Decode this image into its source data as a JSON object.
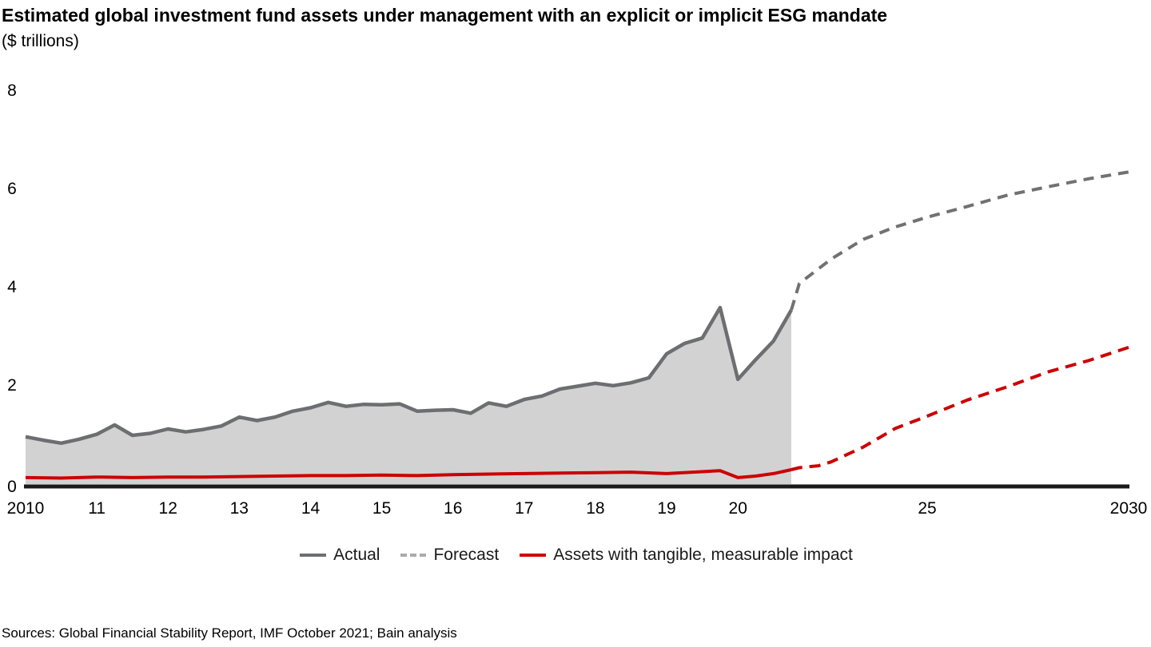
{
  "title": "Estimated global investment fund assets under management with an explicit or implicit ESG mandate",
  "subtitle": "($ trillions)",
  "source_note": "Sources: Global Financial Stability Report, IMF October 2021; Bain analysis",
  "legend": {
    "items": [
      {
        "label": "Actual",
        "swatch": "solid-gray"
      },
      {
        "label": "Forecast",
        "swatch": "dashed-gray"
      },
      {
        "label": "Assets with tangible, measurable impact",
        "swatch": "solid-red"
      }
    ]
  },
  "colors": {
    "actual_line": "#6d6e71",
    "forecast_line": "#717174",
    "impact_line": "#cc0000",
    "area_fill": "#d2d2d2",
    "axis_line": "#1a1a1a",
    "legend_forecast_swatch": "#ababab"
  },
  "chart_data": {
    "type": "area",
    "title": "Estimated global investment fund assets under management with an explicit or implicit ESG mandate",
    "ylabel": "$ trillions",
    "ylim": [
      0,
      8
    ],
    "grid": false,
    "legend_position": "bottom-center",
    "y_ticks": [
      0,
      2,
      4,
      6,
      8
    ],
    "x_ticks": [
      {
        "label": "2010",
        "year": 2010
      },
      {
        "label": "11",
        "year": 2011
      },
      {
        "label": "12",
        "year": 2012
      },
      {
        "label": "13",
        "year": 2013
      },
      {
        "label": "14",
        "year": 2014
      },
      {
        "label": "15",
        "year": 2015
      },
      {
        "label": "16",
        "year": 2016
      },
      {
        "label": "17",
        "year": 2017
      },
      {
        "label": "18",
        "year": 2018
      },
      {
        "label": "19",
        "year": 2019
      },
      {
        "label": "20",
        "year": 2020
      },
      {
        "label": "25",
        "year": 2025
      },
      {
        "label": "2030",
        "year": 2030
      }
    ],
    "series": [
      {
        "name": "Actual",
        "style": "solid",
        "filled": true,
        "points": [
          [
            2010.0,
            0.93
          ],
          [
            2010.25,
            0.86
          ],
          [
            2010.5,
            0.8
          ],
          [
            2010.75,
            0.88
          ],
          [
            2011.0,
            0.98
          ],
          [
            2011.25,
            1.17
          ],
          [
            2011.5,
            0.96
          ],
          [
            2011.75,
            1.0
          ],
          [
            2012.0,
            1.09
          ],
          [
            2012.25,
            1.03
          ],
          [
            2012.5,
            1.08
          ],
          [
            2012.75,
            1.15
          ],
          [
            2013.0,
            1.33
          ],
          [
            2013.25,
            1.26
          ],
          [
            2013.5,
            1.33
          ],
          [
            2013.75,
            1.45
          ],
          [
            2014.0,
            1.52
          ],
          [
            2014.25,
            1.63
          ],
          [
            2014.5,
            1.55
          ],
          [
            2014.75,
            1.59
          ],
          [
            2015.0,
            1.58
          ],
          [
            2015.25,
            1.6
          ],
          [
            2015.5,
            1.45
          ],
          [
            2015.75,
            1.47
          ],
          [
            2016.0,
            1.48
          ],
          [
            2016.25,
            1.41
          ],
          [
            2016.5,
            1.62
          ],
          [
            2016.75,
            1.55
          ],
          [
            2017.0,
            1.69
          ],
          [
            2017.25,
            1.76
          ],
          [
            2017.5,
            1.9
          ],
          [
            2017.75,
            1.96
          ],
          [
            2018.0,
            2.02
          ],
          [
            2018.25,
            1.97
          ],
          [
            2018.5,
            2.03
          ],
          [
            2018.75,
            2.13
          ],
          [
            2019.0,
            2.62
          ],
          [
            2019.25,
            2.83
          ],
          [
            2019.5,
            2.94
          ],
          [
            2019.75,
            3.56
          ],
          [
            2020.0,
            2.1
          ],
          [
            2020.25,
            2.5
          ],
          [
            2020.5,
            2.88
          ],
          [
            2020.75,
            3.51
          ]
        ]
      },
      {
        "name": "Forecast",
        "style": "dashed",
        "filled": false,
        "points": [
          [
            2020.75,
            3.51
          ],
          [
            2021,
            4.05
          ],
          [
            2022,
            4.55
          ],
          [
            2023,
            4.95
          ],
          [
            2024,
            5.2
          ],
          [
            2025,
            5.4
          ],
          [
            2026,
            5.62
          ],
          [
            2027,
            5.85
          ],
          [
            2028,
            6.02
          ],
          [
            2029,
            6.18
          ],
          [
            2030,
            6.32
          ]
        ]
      },
      {
        "name": "Assets with tangible, measurable impact (actual)",
        "style": "solid",
        "filled": false,
        "points": [
          [
            2010.0,
            0.1
          ],
          [
            2010.5,
            0.09
          ],
          [
            2011.0,
            0.11
          ],
          [
            2011.5,
            0.1
          ],
          [
            2012.0,
            0.11
          ],
          [
            2012.5,
            0.11
          ],
          [
            2013.0,
            0.12
          ],
          [
            2013.5,
            0.13
          ],
          [
            2014.0,
            0.14
          ],
          [
            2014.5,
            0.14
          ],
          [
            2015.0,
            0.15
          ],
          [
            2015.5,
            0.14
          ],
          [
            2016.0,
            0.16
          ],
          [
            2016.5,
            0.17
          ],
          [
            2017.0,
            0.18
          ],
          [
            2017.5,
            0.19
          ],
          [
            2018.0,
            0.2
          ],
          [
            2018.5,
            0.21
          ],
          [
            2019.0,
            0.18
          ],
          [
            2019.5,
            0.22
          ],
          [
            2019.75,
            0.24
          ],
          [
            2020.0,
            0.1
          ],
          [
            2020.25,
            0.13
          ],
          [
            2020.5,
            0.18
          ],
          [
            2020.75,
            0.26
          ]
        ]
      },
      {
        "name": "Assets with tangible, measurable impact (forecast)",
        "style": "dashed",
        "filled": false,
        "points": [
          [
            2020.75,
            0.26
          ],
          [
            2021,
            0.3
          ],
          [
            2021.6,
            0.34
          ],
          [
            2022,
            0.42
          ],
          [
            2023,
            0.72
          ],
          [
            2024,
            1.1
          ],
          [
            2025,
            1.35
          ],
          [
            2026,
            1.68
          ],
          [
            2027,
            1.95
          ],
          [
            2028,
            2.25
          ],
          [
            2029,
            2.48
          ],
          [
            2030,
            2.75
          ]
        ]
      }
    ]
  }
}
